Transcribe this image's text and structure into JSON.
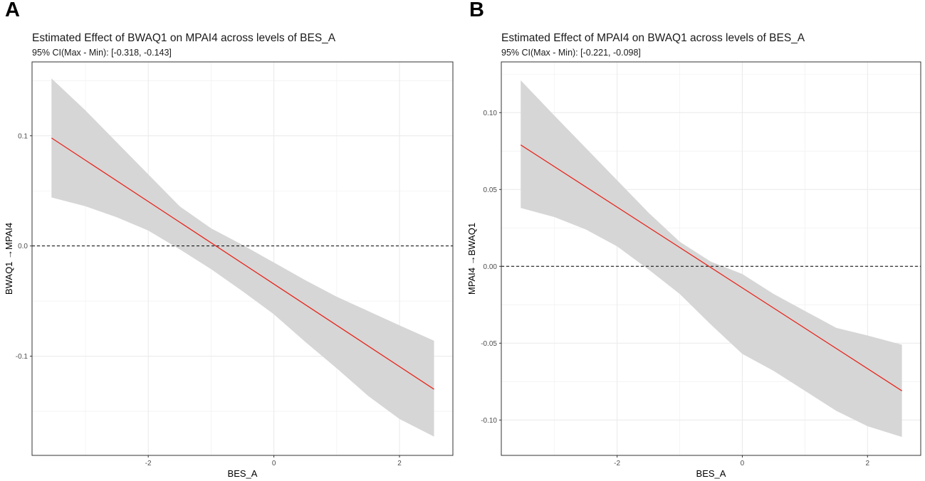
{
  "panels": [
    {
      "letter": "A",
      "title": "Estimated Effect of BWAQ1 on MPAI4 across levels of BES_A",
      "subtitle": "95% CI(Max - Min): [-0.318, -0.143]"
    },
    {
      "letter": "B",
      "title": "Estimated Effect of MPAI4 on BWAQ1 across levels of BES_A",
      "subtitle": "95% CI(Max - Min): [-0.221, -0.098]"
    }
  ],
  "chart_data": [
    {
      "type": "line",
      "title": "Estimated Effect of BWAQ1 on MPAI4 across levels of BES_A",
      "subtitle": "95% CI(Max - Min): [-0.318, -0.143]",
      "xlabel": "BES_A",
      "ylabel": "BWAQ1 →MPAI4",
      "xlim": [
        -3.85,
        2.85
      ],
      "ylim": [
        -0.19,
        0.167
      ],
      "xticks": [
        -2,
        0,
        2
      ],
      "xtick_labels": [
        "-2",
        "0",
        "2"
      ],
      "yticks": [
        -0.1,
        0.0,
        0.1
      ],
      "ytick_labels": [
        "-0.1",
        "0.0",
        "0.1"
      ],
      "grid": true,
      "reference_line": {
        "y": 0,
        "style": "dashed",
        "color": "#000000"
      },
      "line_color": "#e8261d",
      "band_color": "#d6d6d6",
      "series": [
        {
          "name": "estimate",
          "x": [
            -3.54,
            2.55
          ],
          "values": [
            0.098,
            -0.13
          ]
        },
        {
          "name": "ci_lower",
          "x": [
            -3.54,
            -3.0,
            -2.5,
            -2.0,
            -1.5,
            -1.0,
            -0.5,
            0.0,
            0.5,
            1.0,
            1.5,
            2.0,
            2.55
          ],
          "values": [
            0.044,
            0.036,
            0.026,
            0.014,
            -0.003,
            -0.021,
            -0.041,
            -0.062,
            -0.087,
            -0.111,
            -0.136,
            -0.157,
            -0.173
          ]
        },
        {
          "name": "ci_upper",
          "x": [
            -3.54,
            -3.0,
            -2.5,
            -2.0,
            -1.5,
            -1.0,
            -0.5,
            0.0,
            0.5,
            1.0,
            1.5,
            2.0,
            2.55
          ],
          "values": [
            0.152,
            0.123,
            0.094,
            0.065,
            0.036,
            0.016,
            0.001,
            -0.015,
            -0.031,
            -0.046,
            -0.059,
            -0.072,
            -0.086
          ]
        }
      ]
    },
    {
      "type": "line",
      "title": "Estimated Effect of MPAI4 on BWAQ1 across levels of BES_A",
      "subtitle": "95% CI(Max - Min): [-0.221, -0.098]",
      "xlabel": "BES_A",
      "ylabel": "MPAI4 →BWAQ1",
      "xlim": [
        -3.85,
        2.85
      ],
      "ylim": [
        -0.123,
        0.133
      ],
      "xticks": [
        -2,
        0,
        2
      ],
      "xtick_labels": [
        "-2",
        "0",
        "2"
      ],
      "yticks": [
        -0.1,
        -0.05,
        0.0,
        0.05,
        0.1
      ],
      "ytick_labels": [
        "-0.10",
        "-0.05",
        "0.00",
        "0.05",
        "0.10"
      ],
      "grid": true,
      "reference_line": {
        "y": 0,
        "style": "dashed",
        "color": "#000000"
      },
      "line_color": "#e8261d",
      "band_color": "#d6d6d6",
      "series": [
        {
          "name": "estimate",
          "x": [
            -3.54,
            2.55
          ],
          "values": [
            0.079,
            -0.081
          ]
        },
        {
          "name": "ci_lower",
          "x": [
            -3.54,
            -3.0,
            -2.5,
            -2.0,
            -1.5,
            -1.0,
            -0.5,
            0.0,
            0.5,
            1.0,
            1.5,
            2.0,
            2.55
          ],
          "values": [
            0.038,
            0.032,
            0.024,
            0.013,
            -0.002,
            -0.018,
            -0.038,
            -0.057,
            -0.068,
            -0.081,
            -0.094,
            -0.104,
            -0.111
          ]
        },
        {
          "name": "ci_upper",
          "x": [
            -3.54,
            -3.0,
            -2.5,
            -2.0,
            -1.5,
            -1.0,
            -0.5,
            0.0,
            0.5,
            1.0,
            1.5,
            2.0,
            2.55
          ],
          "values": [
            0.121,
            0.098,
            0.077,
            0.056,
            0.035,
            0.016,
            0.003,
            -0.005,
            -0.018,
            -0.029,
            -0.04,
            -0.045,
            -0.051
          ]
        }
      ]
    }
  ]
}
